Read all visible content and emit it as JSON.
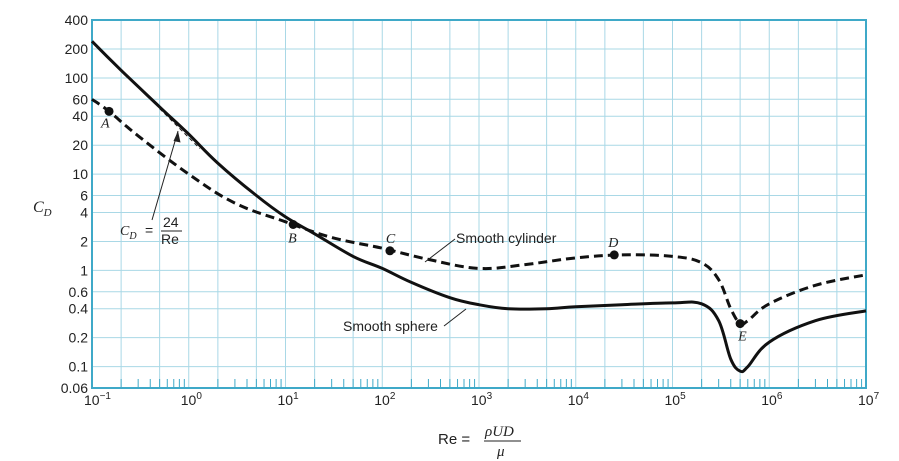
{
  "chart_data": {
    "type": "line",
    "x_scale": "log",
    "y_scale": "log",
    "xlim": [
      0.1,
      10000000
    ],
    "ylim": [
      0.06,
      400
    ],
    "grid": true,
    "colors": {
      "frame": "#3fa9c8",
      "grid": "#a9d8e6",
      "curve": "#111111"
    },
    "ylabel": "C",
    "ylabel_sub": "D",
    "xlabel_prefix": "Re =",
    "xlabel_num": "ρUD",
    "xlabel_den": "μ",
    "x_ticks": [
      {
        "base": "10",
        "exp": "−1",
        "value": 0.1
      },
      {
        "base": "10",
        "exp": "0",
        "value": 1
      },
      {
        "base": "10",
        "exp": "1",
        "value": 10
      },
      {
        "base": "10",
        "exp": "2",
        "value": 100
      },
      {
        "base": "10",
        "exp": "3",
        "value": 1000
      },
      {
        "base": "10",
        "exp": "4",
        "value": 10000
      },
      {
        "base": "10",
        "exp": "5",
        "value": 100000
      },
      {
        "base": "10",
        "exp": "6",
        "value": 1000000
      },
      {
        "base": "10",
        "exp": "7",
        "value": 10000000
      }
    ],
    "y_ticks": [
      {
        "label": "400",
        "value": 400
      },
      {
        "label": "200",
        "value": 200
      },
      {
        "label": "100",
        "value": 100
      },
      {
        "label": "60",
        "value": 60
      },
      {
        "label": "40",
        "value": 40
      },
      {
        "label": "20",
        "value": 20
      },
      {
        "label": "10",
        "value": 10
      },
      {
        "label": "6",
        "value": 6
      },
      {
        "label": "4",
        "value": 4
      },
      {
        "label": "2",
        "value": 2
      },
      {
        "label": "1",
        "value": 1
      },
      {
        "label": "0.6",
        "value": 0.6
      },
      {
        "label": "0.4",
        "value": 0.4
      },
      {
        "label": "0.2",
        "value": 0.2
      },
      {
        "label": "0.1",
        "value": 0.1
      },
      {
        "label": "0.06",
        "value": 0.06
      }
    ],
    "series": [
      {
        "name": "Smooth sphere",
        "style": "solid",
        "points": [
          [
            0.1,
            240
          ],
          [
            0.2,
            120
          ],
          [
            0.5,
            50
          ],
          [
            1,
            26
          ],
          [
            2,
            13
          ],
          [
            5,
            6
          ],
          [
            10,
            3.6
          ],
          [
            20,
            2.4
          ],
          [
            50,
            1.4
          ],
          [
            100,
            1.05
          ],
          [
            200,
            0.75
          ],
          [
            500,
            0.52
          ],
          [
            1000,
            0.44
          ],
          [
            2000,
            0.4
          ],
          [
            5000,
            0.4
          ],
          [
            10000,
            0.42
          ],
          [
            30000,
            0.44
          ],
          [
            100000,
            0.46
          ],
          [
            200000,
            0.45
          ],
          [
            300000,
            0.3
          ],
          [
            400000,
            0.12
          ],
          [
            500000,
            0.09
          ],
          [
            600000,
            0.1
          ],
          [
            1000000,
            0.18
          ],
          [
            3000000,
            0.3
          ],
          [
            10000000,
            0.38
          ]
        ]
      },
      {
        "name": "Smooth cylinder",
        "style": "dashed",
        "points": [
          [
            0.1,
            60
          ],
          [
            0.15,
            45
          ],
          [
            0.3,
            25
          ],
          [
            1,
            10
          ],
          [
            3,
            5
          ],
          [
            10,
            3.2
          ],
          [
            30,
            2.2
          ],
          [
            100,
            1.7
          ],
          [
            300,
            1.3
          ],
          [
            1000,
            1.05
          ],
          [
            3000,
            1.15
          ],
          [
            10000,
            1.35
          ],
          [
            30000,
            1.45
          ],
          [
            100000,
            1.4
          ],
          [
            200000,
            1.2
          ],
          [
            300000,
            0.8
          ],
          [
            400000,
            0.4
          ],
          [
            500000,
            0.28
          ],
          [
            600000,
            0.3
          ],
          [
            1000000,
            0.45
          ],
          [
            3000000,
            0.7
          ],
          [
            10000000,
            0.9
          ]
        ]
      },
      {
        "name": "24/Re",
        "style": "dash",
        "points": [
          [
            0.5,
            48
          ],
          [
            1.3,
            18.5
          ]
        ]
      }
    ],
    "markers": [
      {
        "label": "A",
        "x": 0.15,
        "y": 45
      },
      {
        "label": "B",
        "x": 12,
        "y": 3.0
      },
      {
        "label": "C",
        "x": 120,
        "y": 1.6
      },
      {
        "label": "D",
        "x": 25000,
        "y": 1.45
      },
      {
        "label": "E",
        "x": 500000,
        "y": 0.28
      }
    ],
    "annotations": [
      {
        "text": "Smooth cylinder"
      },
      {
        "text": "Smooth sphere"
      },
      {
        "lhs": "C",
        "lhs_sub": "D",
        "equals": "=",
        "num": "24",
        "den": "Re"
      }
    ]
  }
}
